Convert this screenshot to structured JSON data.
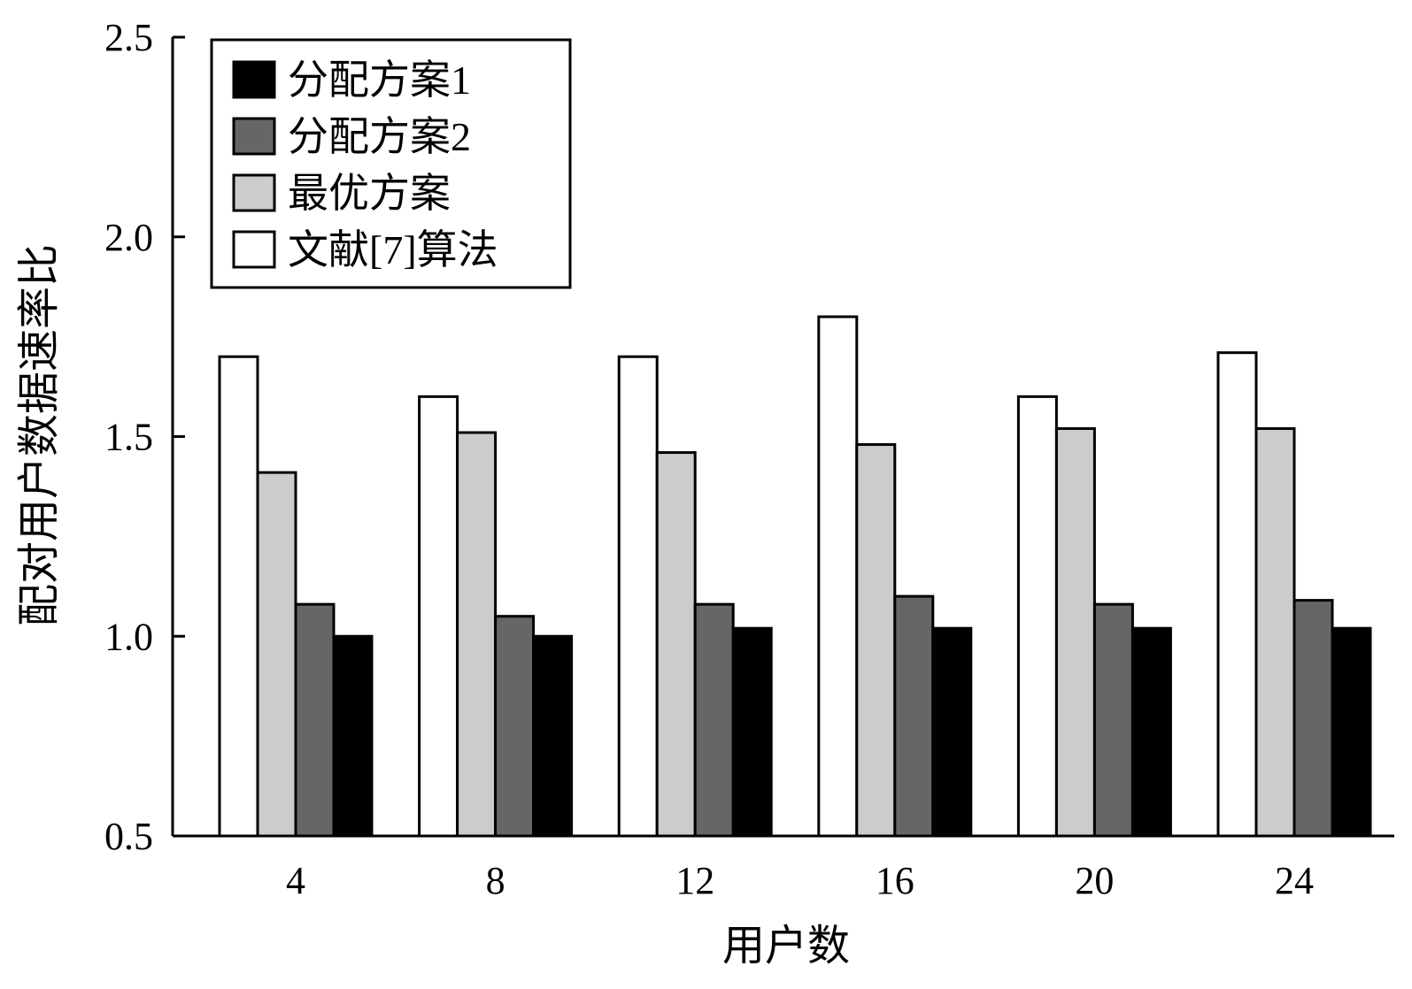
{
  "chart_data": {
    "type": "bar",
    "title": "",
    "xlabel": "用户数",
    "ylabel": "配对用户数据速率比",
    "categories": [
      "4",
      "8",
      "12",
      "16",
      "20",
      "24"
    ],
    "ylim": [
      0.5,
      2.5
    ],
    "yticks": [
      "0.5",
      "1.0",
      "1.5",
      "2.0",
      "2.5"
    ],
    "grid": false,
    "legend_position": "top-left",
    "series": [
      {
        "name": "文献[7]算法",
        "color": "#ffffff",
        "values": [
          1.7,
          1.6,
          1.7,
          1.8,
          1.6,
          1.71
        ]
      },
      {
        "name": "最优方案",
        "color": "#cccccc",
        "values": [
          1.41,
          1.51,
          1.46,
          1.48,
          1.52,
          1.52
        ]
      },
      {
        "name": "分配方案2",
        "color": "#666666",
        "values": [
          1.08,
          1.05,
          1.08,
          1.1,
          1.08,
          1.09
        ]
      },
      {
        "name": "分配方案1",
        "color": "#000000",
        "values": [
          1.0,
          1.0,
          1.02,
          1.02,
          1.02,
          1.02
        ]
      }
    ],
    "legend_order": [
      "分配方案1",
      "分配方案2",
      "最优方案",
      "文献[7]算法"
    ]
  }
}
